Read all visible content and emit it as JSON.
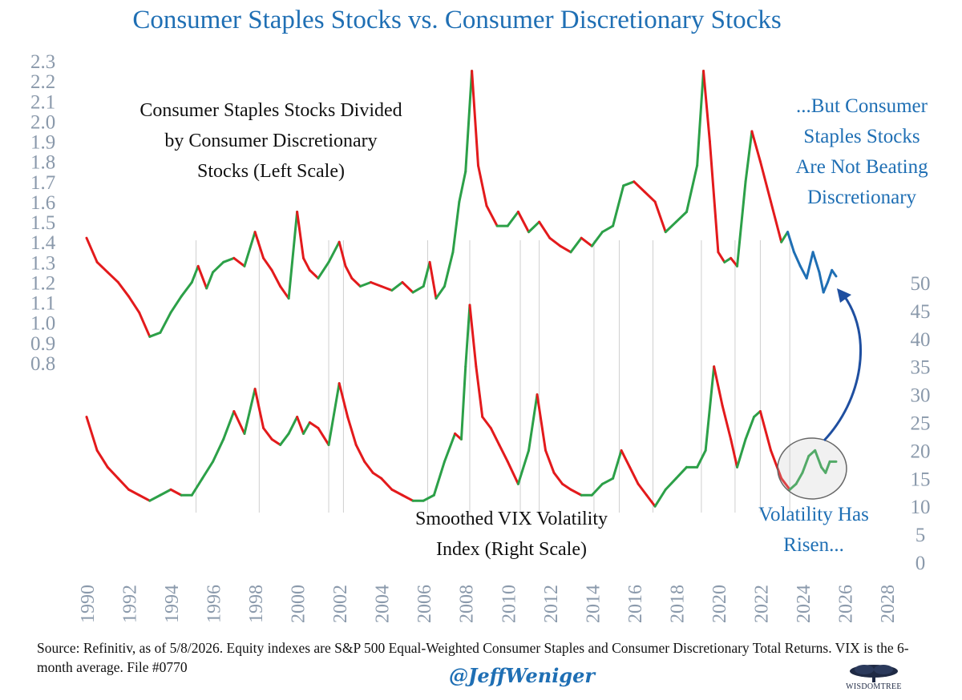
{
  "chart_data": {
    "type": "line",
    "title": "Consumer Staples Stocks vs. Consumer Discretionary Stocks",
    "annotations": {
      "ratio_label": [
        "Consumer Staples Stocks Divided",
        "by Consumer Discretionary",
        "Stocks (Left Scale)"
      ],
      "vix_label": [
        "Smoothed VIX Volatility",
        "Index (Right Scale)"
      ],
      "callout_top": [
        "...But Consumer",
        "Staples Stocks",
        "Are Not Beating",
        "Discretionary"
      ],
      "callout_bottom": [
        "Volatility Has",
        "Risen..."
      ]
    },
    "x_axis": {
      "range": [
        1990,
        2028
      ],
      "ticks": [
        "1990",
        "1992",
        "1994",
        "1996",
        "1998",
        "2000",
        "2002",
        "2004",
        "2006",
        "2008",
        "2010",
        "2012",
        "2014",
        "2016",
        "2018",
        "2020",
        "2022",
        "2024",
        "2026",
        "2028"
      ]
    },
    "left_axis": {
      "range": [
        0.8,
        2.3
      ],
      "ticks": [
        "2.3",
        "2.2",
        "2.1",
        "2.0",
        "1.9",
        "1.8",
        "1.7",
        "1.6",
        "1.5",
        "1.4",
        "1.3",
        "1.2",
        "1.1",
        "1.0",
        "0.9",
        "0.8"
      ]
    },
    "right_axis": {
      "range": [
        0,
        50
      ],
      "ticks": [
        "50",
        "45",
        "40",
        "35",
        "30",
        "25",
        "20",
        "15",
        "10",
        "5",
        "0"
      ]
    },
    "colors": {
      "rising": "#2ca048",
      "falling": "#e31a1c",
      "recent": "#1f6fb4",
      "title": "#1f6fb4",
      "axis": "#8a99ab"
    },
    "series": [
      {
        "key": "ratio",
        "x": [
          1990.0,
          1990.5,
          1991.0,
          1991.5,
          1992.0,
          1992.5,
          1993.0,
          1993.5,
          1994.0,
          1994.5,
          1995.0,
          1995.3,
          1995.7,
          1996.0,
          1996.5,
          1997.0,
          1997.5,
          1998.0,
          1998.4,
          1998.8,
          1999.2,
          1999.6,
          2000.0,
          2000.3,
          2000.6,
          2001.0,
          2001.5,
          2002.0,
          2002.3,
          2002.6,
          2003.0,
          2003.5,
          2004.0,
          2004.5,
          2005.0,
          2005.5,
          2006.0,
          2006.3,
          2006.6,
          2007.0,
          2007.4,
          2007.7,
          2008.0,
          2008.3,
          2008.6,
          2009.0,
          2009.5,
          2010.0,
          2010.5,
          2011.0,
          2011.5,
          2012.0,
          2012.5,
          2013.0,
          2013.5,
          2014.0,
          2014.5,
          2015.0,
          2015.5,
          2016.0,
          2016.5,
          2017.0,
          2017.5,
          2018.0,
          2018.5,
          2019.0,
          2019.3,
          2019.6,
          2020.0,
          2020.3,
          2020.6,
          2020.9,
          2021.3,
          2021.6,
          2022.0,
          2022.5,
          2023.0,
          2023.3
        ],
        "y": [
          1.42,
          1.3,
          1.25,
          1.2,
          1.13,
          1.05,
          0.93,
          0.95,
          1.05,
          1.13,
          1.2,
          1.28,
          1.17,
          1.25,
          1.3,
          1.32,
          1.28,
          1.45,
          1.32,
          1.26,
          1.18,
          1.12,
          1.55,
          1.32,
          1.26,
          1.22,
          1.3,
          1.4,
          1.28,
          1.22,
          1.18,
          1.2,
          1.18,
          1.16,
          1.2,
          1.15,
          1.18,
          1.3,
          1.12,
          1.18,
          1.35,
          1.6,
          1.75,
          2.25,
          1.78,
          1.58,
          1.48,
          1.48,
          1.55,
          1.45,
          1.5,
          1.42,
          1.38,
          1.35,
          1.42,
          1.38,
          1.45,
          1.48,
          1.68,
          1.7,
          1.65,
          1.6,
          1.45,
          1.5,
          1.55,
          1.78,
          2.25,
          1.9,
          1.35,
          1.3,
          1.32,
          1.28,
          1.7,
          1.95,
          1.8,
          1.6,
          1.4,
          1.45
        ]
      },
      {
        "key": "ratio_recent",
        "x": [
          2023.3,
          2023.6,
          2023.9,
          2024.2,
          2024.5,
          2024.8,
          2025.0,
          2025.2,
          2025.4,
          2025.6
        ],
        "y": [
          1.45,
          1.35,
          1.28,
          1.22,
          1.35,
          1.25,
          1.15,
          1.2,
          1.26,
          1.23
        ]
      },
      {
        "key": "vix",
        "x": [
          1990.0,
          1990.5,
          1991.0,
          1991.5,
          1992.0,
          1992.5,
          1993.0,
          1993.5,
          1994.0,
          1994.5,
          1995.0,
          1995.5,
          1996.0,
          1996.5,
          1997.0,
          1997.5,
          1998.0,
          1998.4,
          1998.8,
          1999.2,
          1999.6,
          2000.0,
          2000.3,
          2000.6,
          2001.0,
          2001.5,
          2002.0,
          2002.4,
          2002.8,
          2003.2,
          2003.6,
          2004.0,
          2004.5,
          2005.0,
          2005.5,
          2006.0,
          2006.5,
          2007.0,
          2007.5,
          2007.8,
          2008.0,
          2008.2,
          2008.5,
          2008.8,
          2009.2,
          2009.6,
          2010.0,
          2010.5,
          2011.0,
          2011.4,
          2011.8,
          2012.2,
          2012.6,
          2013.0,
          2013.5,
          2014.0,
          2014.5,
          2015.0,
          2015.4,
          2015.8,
          2016.2,
          2016.6,
          2017.0,
          2017.5,
          2018.0,
          2018.5,
          2019.0,
          2019.4,
          2019.8,
          2020.2,
          2020.6,
          2020.9,
          2021.3,
          2021.7,
          2022.0,
          2022.5,
          2023.0,
          2023.4
        ],
        "y": [
          26,
          20,
          17,
          15,
          13,
          12,
          11,
          12,
          13,
          12,
          12,
          15,
          18,
          22,
          27,
          23,
          31,
          24,
          22,
          21,
          23,
          26,
          23,
          25,
          24,
          21,
          32,
          26,
          21,
          18,
          16,
          15,
          13,
          12,
          11,
          11,
          12,
          18,
          23,
          22,
          35,
          46,
          35,
          26,
          24,
          21,
          18,
          14,
          20,
          30,
          20,
          16,
          14,
          13,
          12,
          12,
          14,
          15,
          20,
          17,
          14,
          12,
          10,
          13,
          15,
          17,
          17,
          20,
          35,
          28,
          22,
          17,
          22,
          26,
          27,
          20,
          15,
          13
        ]
      },
      {
        "key": "vix_recent",
        "x": [
          2023.4,
          2023.7,
          2024.0,
          2024.3,
          2024.6,
          2024.9,
          2025.1,
          2025.3,
          2025.6
        ],
        "y": [
          13,
          14,
          16,
          19,
          20,
          17,
          16,
          18,
          18
        ]
      }
    ],
    "turning_points": [
      1995.2,
      1998.2,
      2001.5,
      2002.2,
      2006.2,
      2008.2,
      2010.6,
      2011.5,
      2014.1,
      2015.3,
      2016.9,
      2019.2,
      2020.8,
      2022.0,
      2023.4
    ]
  },
  "footer": {
    "source": "Source: Refinitiv, as of 5/8/2026. Equity indexes are S&P 500 Equal-Weighted Consumer Staples and Consumer Discretionary Total Returns. VIX is the 6-month average.  File #0770",
    "handle": "@JeffWeniger",
    "logo_text": "WISDOMTREE"
  }
}
